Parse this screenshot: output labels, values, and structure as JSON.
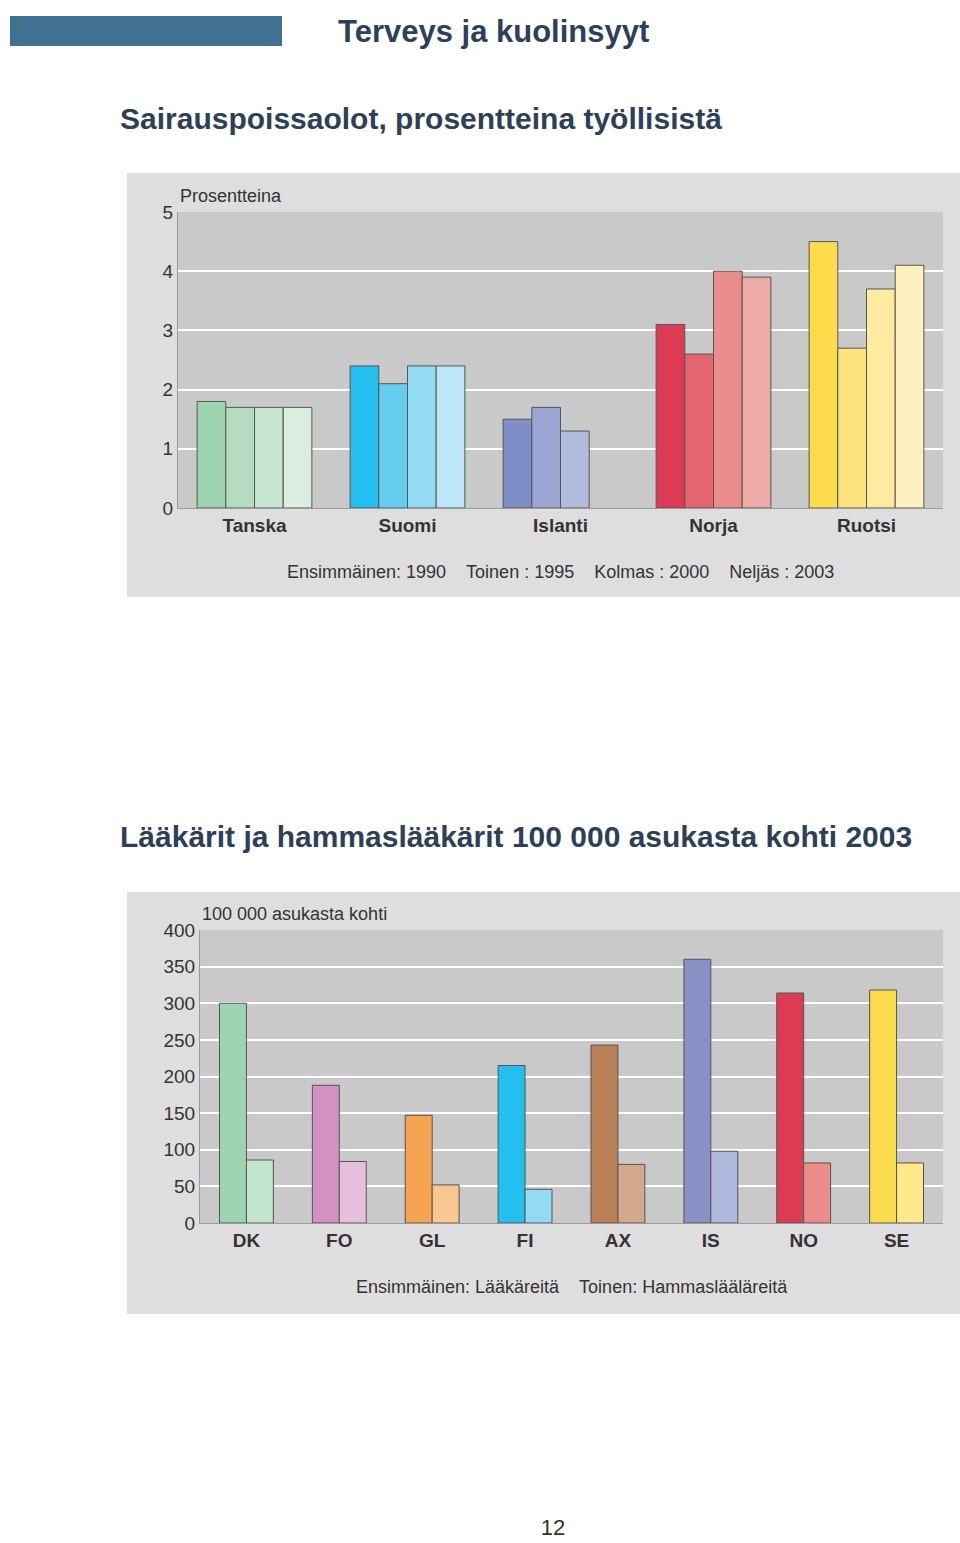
{
  "header": {
    "title": "Terveys ja kuolinsyyt"
  },
  "page_number": "12",
  "chart_data": [
    {
      "type": "bar",
      "title": "Sairauspoissaolot, prosentteina työllisistä",
      "y_label": "Prosentteina",
      "categories": [
        "Tanska",
        "Suomi",
        "Islanti",
        "Norja",
        "Ruotsi"
      ],
      "series": [
        {
          "name": "Ensimmäinen: 1990",
          "colors": [
            "#9dd3b0",
            "#22bfef",
            "#7f8ec6",
            "#dd3b54",
            "#fcdc4c"
          ],
          "values": [
            1.8,
            2.4,
            1.5,
            3.1,
            4.5
          ]
        },
        {
          "name": "Toinen : 1995",
          "colors": [
            "#b3dcc0",
            "#66cdf0",
            "#9ba7d2",
            "#e56570",
            "#fde47e"
          ],
          "values": [
            1.7,
            2.1,
            1.7,
            2.6,
            2.7
          ]
        },
        {
          "name": "Kolmas : 2000",
          "colors": [
            "#c7e5d0",
            "#93daf3",
            "#b3bcdd",
            "#ea8d8a",
            "#fdeba0"
          ],
          "values": [
            1.7,
            2.4,
            1.3,
            4.0,
            3.7
          ]
        },
        {
          "name": "Neljäs : 2003",
          "colors": [
            "#d9eee0",
            "#bde6f6",
            "#c8cee6",
            "#eeaaa6",
            "#fef1bf"
          ],
          "values": [
            1.7,
            2.4,
            null,
            3.9,
            4.1
          ]
        }
      ],
      "ylim": [
        0,
        5
      ],
      "yticks": [
        0,
        1,
        2,
        3,
        4,
        5
      ],
      "grid": true,
      "legend": "bottom"
    },
    {
      "type": "bar",
      "title": "Lääkärit ja hammaslääkärit 100 000 asukasta kohti 2003",
      "y_label": "100 000 asukasta kohti",
      "categories": [
        "DK",
        "FO",
        "GL",
        "FI",
        "AX",
        "IS",
        "NO",
        "SE"
      ],
      "series": [
        {
          "name": "Ensimmäinen: Lääkäreitä",
          "colors": [
            "#9dd3b0",
            "#d48fc3",
            "#f6a452",
            "#22bfef",
            "#b98058",
            "#8890c6",
            "#dc3b54",
            "#fcdc4c"
          ],
          "values": [
            300,
            188,
            147,
            215,
            243,
            360,
            314,
            318
          ]
        },
        {
          "name": "Toinen: Hammaslääläreitä",
          "colors": [
            "#c2e4cc",
            "#e6bfdd",
            "#f9c891",
            "#93daf3",
            "#d3a88b",
            "#b0b7dd",
            "#ea8d8a",
            "#fde98a"
          ],
          "values": [
            86,
            84,
            52,
            46,
            80,
            98,
            82,
            82
          ]
        }
      ],
      "ylim": [
        0,
        400
      ],
      "yticks": [
        0,
        50,
        100,
        150,
        200,
        250,
        300,
        350,
        400
      ],
      "grid": true,
      "legend": "bottom"
    }
  ]
}
